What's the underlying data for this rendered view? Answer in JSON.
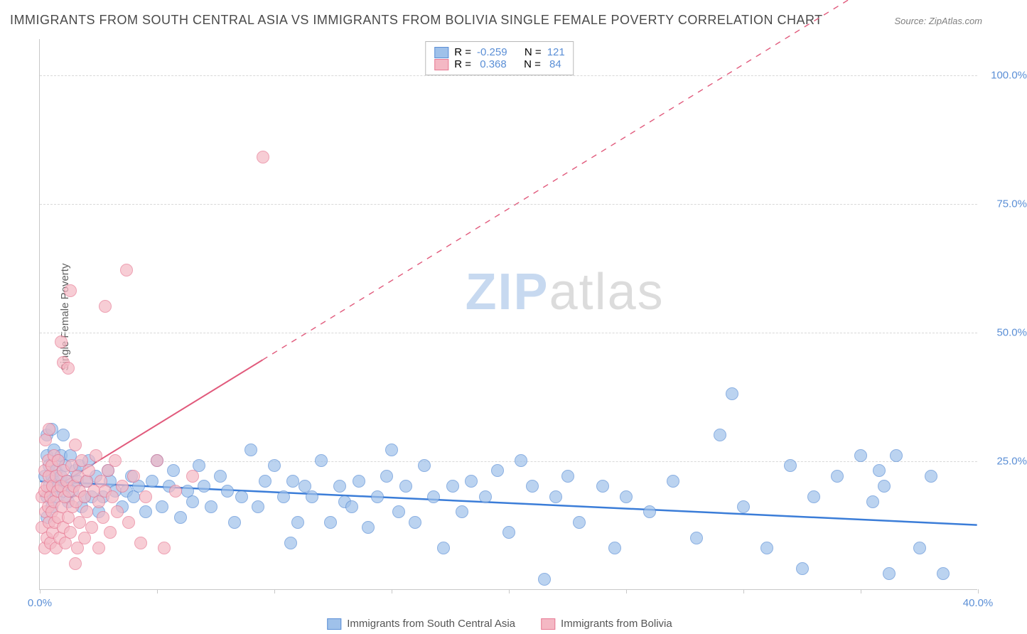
{
  "title": "IMMIGRANTS FROM SOUTH CENTRAL ASIA VS IMMIGRANTS FROM BOLIVIA SINGLE FEMALE POVERTY CORRELATION CHART",
  "source": "Source: ZipAtlas.com",
  "y_axis_title": "Single Female Poverty",
  "watermark": {
    "a": "ZIP",
    "b": "atlas"
  },
  "chart": {
    "type": "scatter",
    "background_color": "#ffffff",
    "grid_color": "#d8d8d8",
    "border_color": "#c8c8c8",
    "xlim": [
      0,
      40
    ],
    "ylim": [
      0,
      107
    ],
    "xticks": [
      0,
      5,
      10,
      15,
      20,
      25,
      30,
      35,
      40
    ],
    "xticklabels": [
      "0.0%",
      "",
      "",
      "",
      "",
      "",
      "",
      "",
      "40.0%"
    ],
    "yticks": [
      25,
      50,
      75,
      100
    ],
    "yticklabels": [
      "25.0%",
      "50.0%",
      "75.0%",
      "100.0%"
    ],
    "label_fontsize": 15,
    "label_color": "#5b8fd6",
    "marker_radius": 9,
    "marker_stroke_width": 1.5,
    "series": [
      {
        "name": "Immigrants from South Central Asia",
        "fill": "#9fc1ea",
        "fill_opacity": 0.35,
        "stroke": "#5b8fd6",
        "R": "-0.259",
        "N": "121",
        "points": [
          [
            0.2,
            22
          ],
          [
            0.3,
            18
          ],
          [
            0.3,
            30
          ],
          [
            0.3,
            14
          ],
          [
            0.3,
            26
          ],
          [
            0.4,
            20
          ],
          [
            0.4,
            24
          ],
          [
            0.5,
            22
          ],
          [
            0.5,
            31
          ],
          [
            0.5,
            16
          ],
          [
            0.6,
            27
          ],
          [
            0.6,
            21
          ],
          [
            0.7,
            23
          ],
          [
            0.7,
            18
          ],
          [
            0.8,
            20
          ],
          [
            0.8,
            25
          ],
          [
            0.9,
            22
          ],
          [
            0.9,
            26
          ],
          [
            1.0,
            30
          ],
          [
            1.0,
            19
          ],
          [
            1.1,
            24
          ],
          [
            1.2,
            21
          ],
          [
            1.2,
            17
          ],
          [
            1.3,
            26
          ],
          [
            1.4,
            19
          ],
          [
            1.5,
            23
          ],
          [
            1.6,
            21
          ],
          [
            1.7,
            24
          ],
          [
            1.8,
            16
          ],
          [
            1.9,
            18
          ],
          [
            2.0,
            21
          ],
          [
            2.1,
            25
          ],
          [
            2.2,
            18
          ],
          [
            2.4,
            22
          ],
          [
            2.5,
            15
          ],
          [
            2.7,
            18
          ],
          [
            2.9,
            23
          ],
          [
            3.0,
            21
          ],
          [
            3.2,
            19
          ],
          [
            3.5,
            16
          ],
          [
            3.7,
            19
          ],
          [
            3.9,
            22
          ],
          [
            4.0,
            18
          ],
          [
            4.2,
            20
          ],
          [
            4.5,
            15
          ],
          [
            4.8,
            21
          ],
          [
            5.0,
            25
          ],
          [
            5.2,
            16
          ],
          [
            5.5,
            20
          ],
          [
            5.7,
            23
          ],
          [
            6.0,
            14
          ],
          [
            6.3,
            19
          ],
          [
            6.5,
            17
          ],
          [
            6.8,
            24
          ],
          [
            7.0,
            20
          ],
          [
            7.3,
            16
          ],
          [
            7.7,
            22
          ],
          [
            8.0,
            19
          ],
          [
            8.3,
            13
          ],
          [
            8.6,
            18
          ],
          [
            9.0,
            27
          ],
          [
            9.3,
            16
          ],
          [
            9.6,
            21
          ],
          [
            10.0,
            24
          ],
          [
            10.4,
            18
          ],
          [
            10.7,
            9
          ],
          [
            10.8,
            21
          ],
          [
            11.0,
            13
          ],
          [
            11.3,
            20
          ],
          [
            11.6,
            18
          ],
          [
            12.0,
            25
          ],
          [
            12.4,
            13
          ],
          [
            12.8,
            20
          ],
          [
            13.0,
            17
          ],
          [
            13.3,
            16
          ],
          [
            13.6,
            21
          ],
          [
            14.0,
            12
          ],
          [
            14.4,
            18
          ],
          [
            14.8,
            22
          ],
          [
            15.0,
            27
          ],
          [
            15.3,
            15
          ],
          [
            15.6,
            20
          ],
          [
            16.0,
            13
          ],
          [
            16.4,
            24
          ],
          [
            16.8,
            18
          ],
          [
            17.2,
            8
          ],
          [
            17.6,
            20
          ],
          [
            18.0,
            15
          ],
          [
            18.4,
            21
          ],
          [
            19.0,
            18
          ],
          [
            19.5,
            23
          ],
          [
            20.0,
            11
          ],
          [
            20.5,
            25
          ],
          [
            21.0,
            20
          ],
          [
            21.5,
            2
          ],
          [
            22.0,
            18
          ],
          [
            22.5,
            22
          ],
          [
            23.0,
            13
          ],
          [
            24.0,
            20
          ],
          [
            24.5,
            8
          ],
          [
            25.0,
            18
          ],
          [
            26.0,
            15
          ],
          [
            27.0,
            21
          ],
          [
            28.0,
            10
          ],
          [
            29.0,
            30
          ],
          [
            29.5,
            38
          ],
          [
            30.0,
            16
          ],
          [
            31.0,
            8
          ],
          [
            32.0,
            24
          ],
          [
            32.5,
            4
          ],
          [
            33.0,
            18
          ],
          [
            34.0,
            22
          ],
          [
            35.0,
            26
          ],
          [
            35.5,
            17
          ],
          [
            35.8,
            23
          ],
          [
            36.0,
            20
          ],
          [
            36.2,
            3
          ],
          [
            36.5,
            26
          ],
          [
            37.5,
            8
          ],
          [
            38.0,
            22
          ],
          [
            38.5,
            3
          ]
        ],
        "trend": {
          "x1": 0,
          "y1": 21.0,
          "x2": 40,
          "y2": 12.5,
          "solid_until_x": 40,
          "color": "#3b7dd8",
          "width": 2.5
        }
      },
      {
        "name": "Immigrants from Bolivia",
        "fill": "#f4b8c4",
        "fill_opacity": 0.35,
        "stroke": "#e77a94",
        "R": "0.368",
        "N": "84",
        "points": [
          [
            0.1,
            18
          ],
          [
            0.1,
            12
          ],
          [
            0.2,
            23
          ],
          [
            0.2,
            8
          ],
          [
            0.2,
            19
          ],
          [
            0.25,
            29
          ],
          [
            0.25,
            15
          ],
          [
            0.3,
            20
          ],
          [
            0.3,
            10
          ],
          [
            0.35,
            25
          ],
          [
            0.35,
            16
          ],
          [
            0.4,
            22
          ],
          [
            0.4,
            13
          ],
          [
            0.4,
            31
          ],
          [
            0.45,
            18
          ],
          [
            0.45,
            9
          ],
          [
            0.5,
            24
          ],
          [
            0.5,
            15
          ],
          [
            0.55,
            20
          ],
          [
            0.55,
            11
          ],
          [
            0.6,
            26
          ],
          [
            0.6,
            17
          ],
          [
            0.65,
            13
          ],
          [
            0.7,
            22
          ],
          [
            0.7,
            8
          ],
          [
            0.75,
            19
          ],
          [
            0.8,
            14
          ],
          [
            0.8,
            25
          ],
          [
            0.85,
            10
          ],
          [
            0.9,
            20
          ],
          [
            0.9,
            48
          ],
          [
            0.95,
            16
          ],
          [
            1.0,
            23
          ],
          [
            1.0,
            12
          ],
          [
            1.0,
            44
          ],
          [
            1.05,
            18
          ],
          [
            1.1,
            9
          ],
          [
            1.15,
            21
          ],
          [
            1.2,
            43
          ],
          [
            1.2,
            14
          ],
          [
            1.25,
            19
          ],
          [
            1.3,
            11
          ],
          [
            1.3,
            58
          ],
          [
            1.35,
            24
          ],
          [
            1.4,
            16
          ],
          [
            1.45,
            20
          ],
          [
            1.5,
            28
          ],
          [
            1.5,
            5
          ],
          [
            1.55,
            17
          ],
          [
            1.6,
            22
          ],
          [
            1.6,
            8
          ],
          [
            1.7,
            19
          ],
          [
            1.7,
            13
          ],
          [
            1.8,
            25
          ],
          [
            1.9,
            10
          ],
          [
            1.9,
            18
          ],
          [
            2.0,
            21
          ],
          [
            2.0,
            15
          ],
          [
            2.1,
            23
          ],
          [
            2.2,
            12
          ],
          [
            2.3,
            19
          ],
          [
            2.4,
            26
          ],
          [
            2.5,
            8
          ],
          [
            2.5,
            17
          ],
          [
            2.6,
            21
          ],
          [
            2.7,
            14
          ],
          [
            2.8,
            19
          ],
          [
            2.8,
            55
          ],
          [
            2.9,
            23
          ],
          [
            3.0,
            11
          ],
          [
            3.1,
            18
          ],
          [
            3.2,
            25
          ],
          [
            3.3,
            15
          ],
          [
            3.5,
            20
          ],
          [
            3.7,
            62
          ],
          [
            3.8,
            13
          ],
          [
            4.0,
            22
          ],
          [
            4.3,
            9
          ],
          [
            4.5,
            18
          ],
          [
            5.0,
            25
          ],
          [
            5.3,
            8
          ],
          [
            5.8,
            19
          ],
          [
            6.5,
            22
          ],
          [
            9.5,
            84
          ]
        ],
        "trend": {
          "x1": 0,
          "y1": 18.0,
          "x2": 40,
          "y2": 130.0,
          "solid_until_x": 9.5,
          "color": "#e15a7c",
          "width": 2
        }
      }
    ]
  },
  "legend_top": {
    "border_color": "#b8b8b8",
    "rows": [
      {
        "swatch_fill": "#9fc1ea",
        "swatch_stroke": "#5b8fd6",
        "r_label": "R =",
        "r_val": "-0.259",
        "n_label": "N =",
        "n_val": "121"
      },
      {
        "swatch_fill": "#f4b8c4",
        "swatch_stroke": "#e77a94",
        "r_label": "R =",
        "r_val": " 0.368",
        "n_label": "N =",
        "n_val": " 84"
      }
    ]
  },
  "legend_bottom": [
    {
      "swatch_fill": "#9fc1ea",
      "swatch_stroke": "#5b8fd6",
      "label": "Immigrants from South Central Asia"
    },
    {
      "swatch_fill": "#f4b8c4",
      "swatch_stroke": "#e77a94",
      "label": "Immigrants from Bolivia"
    }
  ]
}
